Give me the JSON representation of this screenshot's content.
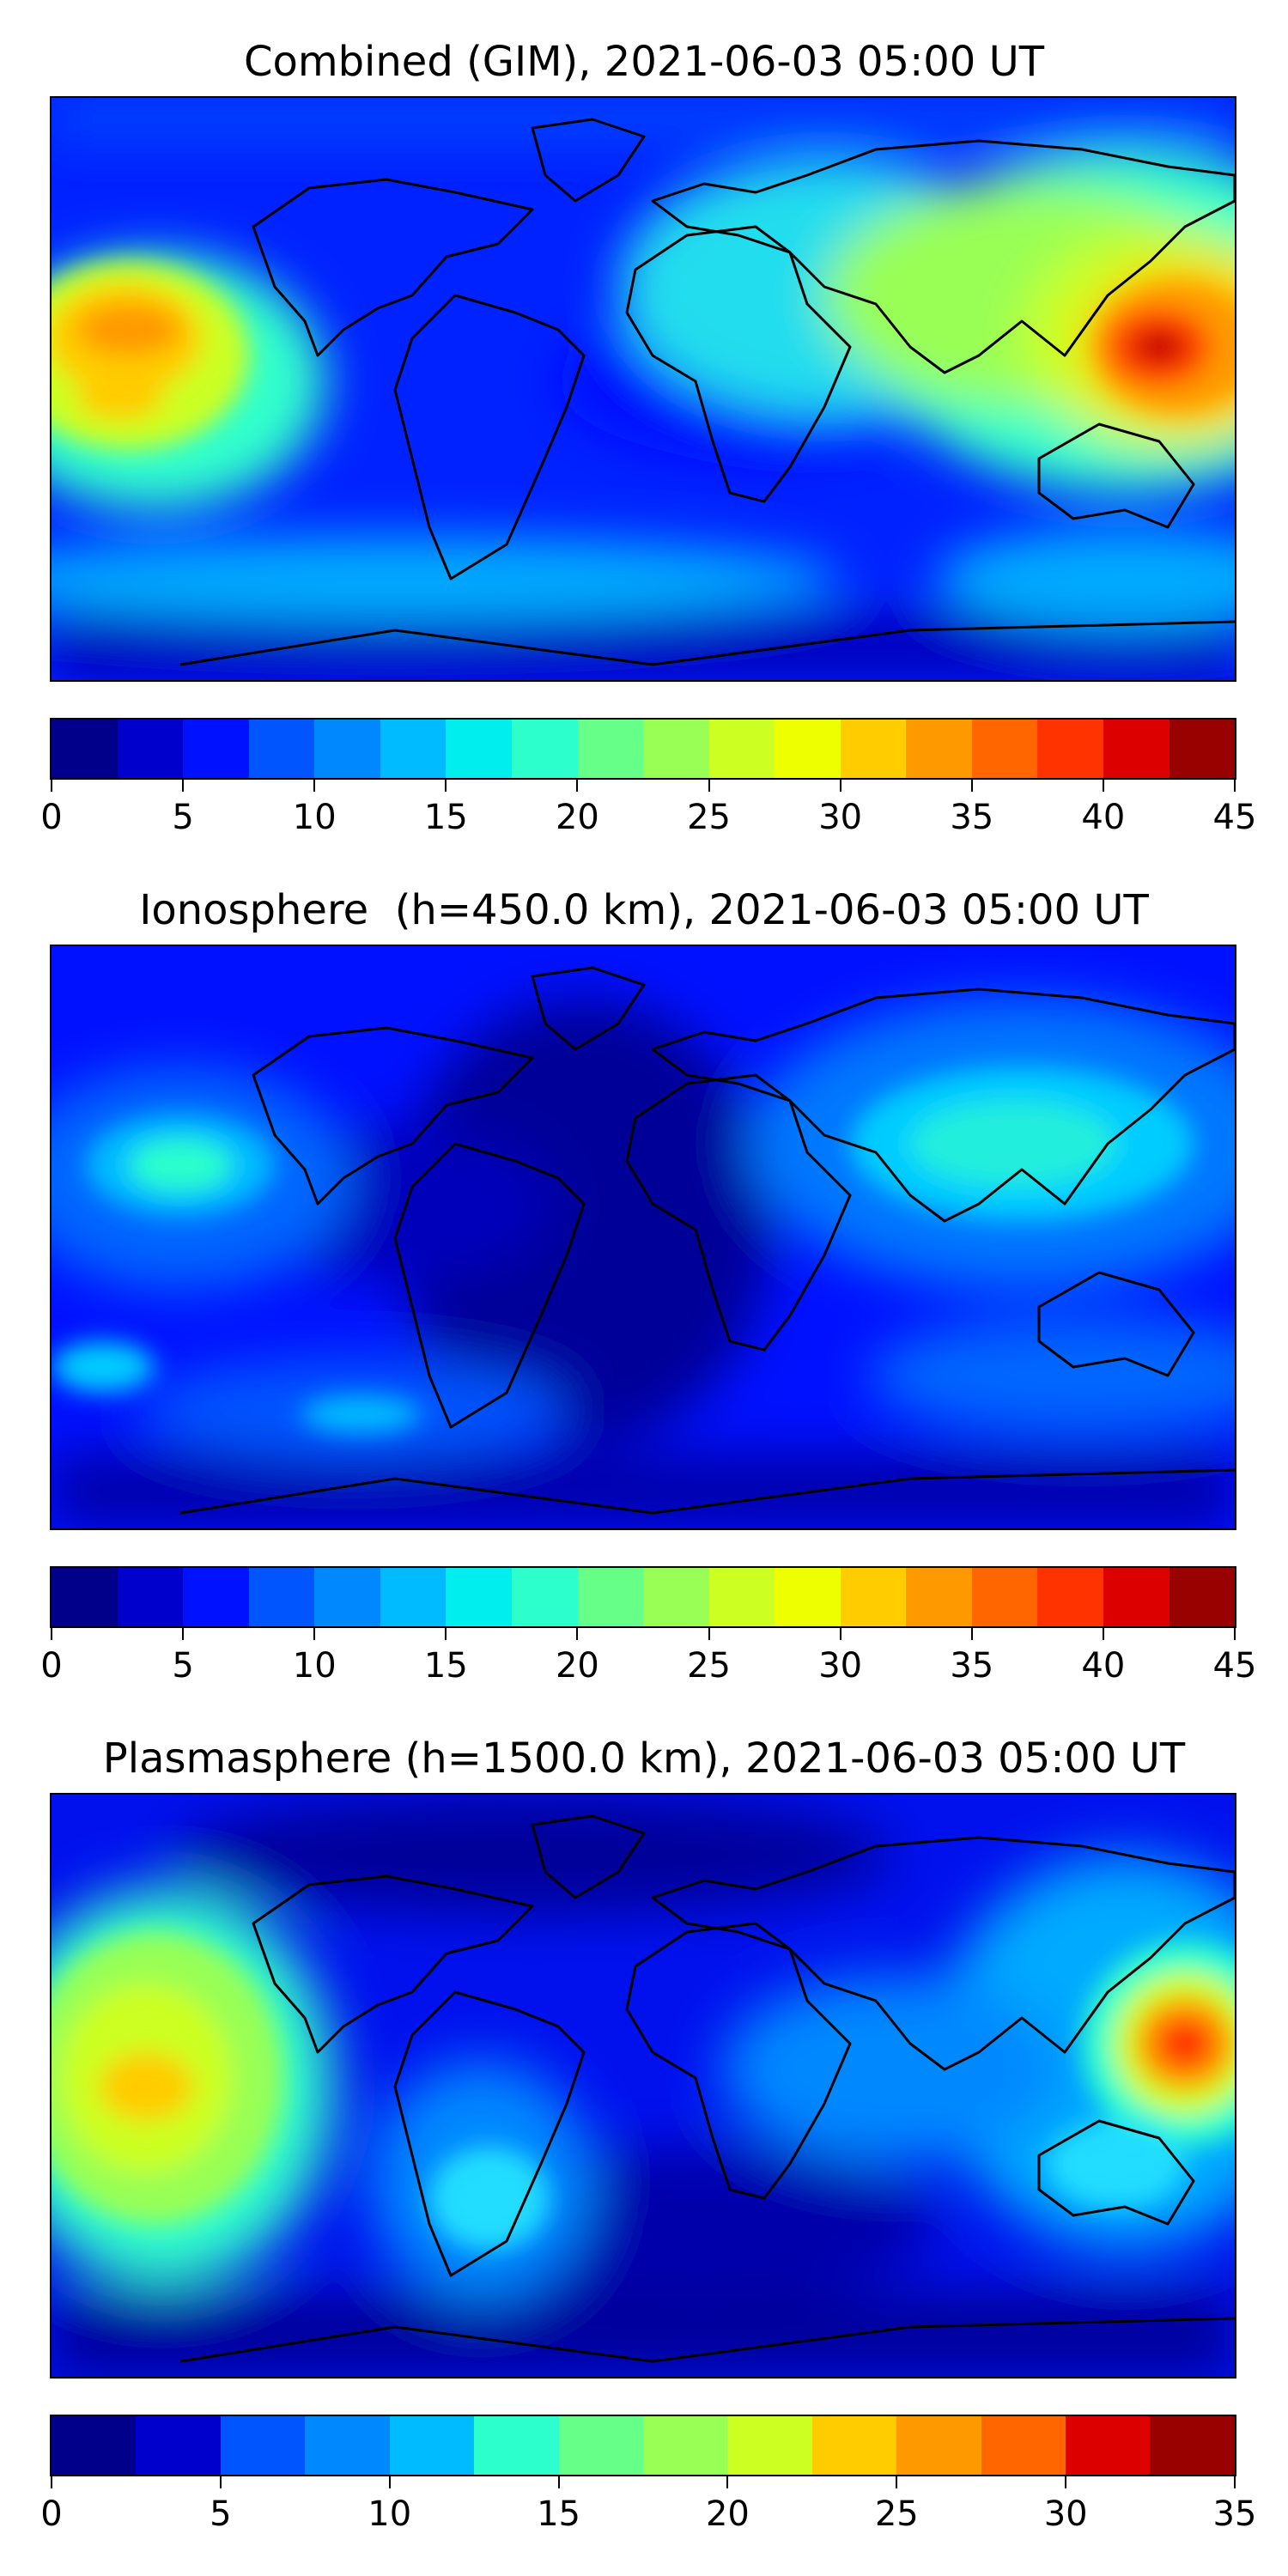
{
  "colors": [
    "#00008a",
    "#0000cc",
    "#0011ff",
    "#0055ff",
    "#0088ff",
    "#00bbff",
    "#00eeee",
    "#2cffcc",
    "#66ff88",
    "#99ff55",
    "#ccff22",
    "#eeff00",
    "#ffcc00",
    "#ff9900",
    "#ff6600",
    "#ff3300",
    "#dd0000",
    "#990000"
  ],
  "chart_data": [
    {
      "type": "heatmap",
      "title": "Combined (GIM), 2021-06-03 05:00 UT",
      "colorbar": {
        "ticks": [
          "0",
          "5",
          "10",
          "15",
          "20",
          "25",
          "30",
          "35",
          "40",
          "45"
        ],
        "range": [
          0,
          45
        ],
        "step": 2.5
      },
      "hotspots": [
        {
          "region": "western Pacific / Philippines",
          "peak": 42
        },
        {
          "region": "central Pacific near Hawaii",
          "peak": 33
        },
        {
          "region": "Asia / Indian Ocean band",
          "peak": 27
        }
      ]
    },
    {
      "type": "heatmap",
      "title": "Ionosphere  (h=450.0 km), 2021-06-03 05:00 UT",
      "colorbar": {
        "ticks": [
          "0",
          "5",
          "10",
          "15",
          "20",
          "25",
          "30",
          "35",
          "40",
          "45"
        ],
        "range": [
          0,
          45
        ],
        "step": 2.5
      },
      "hotspots": [
        {
          "region": "Asia / Indian Ocean",
          "peak": 17
        },
        {
          "region": "central Pacific near Hawaii",
          "peak": 16
        }
      ]
    },
    {
      "type": "heatmap",
      "title": "Plasmasphere (h=1500.0 km), 2021-06-03 05:00 UT",
      "colorbar": {
        "ticks": [
          "0",
          "5",
          "10",
          "15",
          "20",
          "25",
          "30",
          "35"
        ],
        "range": [
          0,
          35
        ],
        "step": 2.5
      },
      "hotspots": [
        {
          "region": "western Pacific east of Philippines",
          "peak": 31
        },
        {
          "region": "central Pacific near Hawaii",
          "peak": 22
        },
        {
          "region": "South America",
          "peak": 13
        }
      ]
    }
  ]
}
